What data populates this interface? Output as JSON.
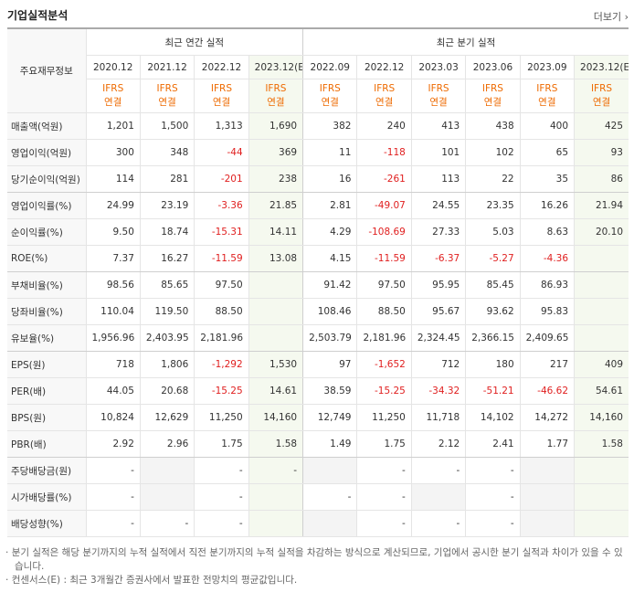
{
  "header": {
    "title": "기업실적분석",
    "more": "더보기"
  },
  "table": {
    "corner": "주요재무정보",
    "groups": [
      "최근 연간 실적",
      "최근 분기 실적"
    ],
    "annual": [
      "2020.12",
      "2021.12",
      "2022.12",
      "2023.12(E)"
    ],
    "quarterly": [
      "2022.09",
      "2022.12",
      "2023.03",
      "2023.06",
      "2023.09",
      "2023.12(E)"
    ],
    "standard": [
      "IFRS",
      "연결"
    ],
    "rows": [
      {
        "label": "매출액(억원)",
        "cells": [
          "1,201",
          "1,500",
          "1,313",
          "1,690",
          "382",
          "240",
          "413",
          "438",
          "400",
          "425"
        ]
      },
      {
        "label": "영업이익(억원)",
        "cells": [
          "300",
          "348",
          "-44",
          "369",
          "11",
          "-118",
          "101",
          "102",
          "65",
          "93"
        ]
      },
      {
        "label": "당기순이익(억원)",
        "cells": [
          "114",
          "281",
          "-201",
          "238",
          "16",
          "-261",
          "113",
          "22",
          "35",
          "86"
        ]
      },
      {
        "label": "영업이익률(%)",
        "cells": [
          "24.99",
          "23.19",
          "-3.36",
          "21.85",
          "2.81",
          "-49.07",
          "24.55",
          "23.35",
          "16.26",
          "21.94"
        ]
      },
      {
        "label": "순이익률(%)",
        "cells": [
          "9.50",
          "18.74",
          "-15.31",
          "14.11",
          "4.29",
          "-108.69",
          "27.33",
          "5.03",
          "8.63",
          "20.10"
        ]
      },
      {
        "label": "ROE(%)",
        "cells": [
          "7.37",
          "16.27",
          "-11.59",
          "13.08",
          "4.15",
          "-11.59",
          "-6.37",
          "-5.27",
          "-4.36",
          null
        ]
      },
      {
        "label": "부채비율(%)",
        "cells": [
          "98.56",
          "85.65",
          "97.50",
          null,
          "91.42",
          "97.50",
          "95.95",
          "85.45",
          "86.93",
          null
        ]
      },
      {
        "label": "당좌비율(%)",
        "cells": [
          "110.04",
          "119.50",
          "88.50",
          null,
          "108.46",
          "88.50",
          "95.67",
          "93.62",
          "95.83",
          null
        ]
      },
      {
        "label": "유보율(%)",
        "cells": [
          "1,956.96",
          "2,403.95",
          "2,181.96",
          null,
          "2,503.79",
          "2,181.96",
          "2,324.45",
          "2,366.15",
          "2,409.65",
          null
        ]
      },
      {
        "label": "EPS(원)",
        "cells": [
          "718",
          "1,806",
          "-1,292",
          "1,530",
          "97",
          "-1,652",
          "712",
          "180",
          "217",
          "409"
        ]
      },
      {
        "label": "PER(배)",
        "cells": [
          "44.05",
          "20.68",
          "-15.25",
          "14.61",
          "38.59",
          "-15.25",
          "-34.32",
          "-51.21",
          "-46.62",
          "54.61"
        ]
      },
      {
        "label": "BPS(원)",
        "cells": [
          "10,824",
          "12,629",
          "11,250",
          "14,160",
          "12,749",
          "11,250",
          "11,718",
          "14,102",
          "14,272",
          "14,160"
        ]
      },
      {
        "label": "PBR(배)",
        "cells": [
          "2.92",
          "2.96",
          "1.75",
          "1.58",
          "1.49",
          "1.75",
          "2.12",
          "2.41",
          "1.77",
          "1.58"
        ]
      },
      {
        "label": "주당배당금(원)",
        "cells": [
          "-",
          null,
          "-",
          "-",
          null,
          "-",
          "-",
          "-",
          null,
          null
        ]
      },
      {
        "label": "시가배당률(%)",
        "cells": [
          "-",
          null,
          "-",
          null,
          "-",
          "-",
          null,
          "-",
          null,
          null
        ]
      },
      {
        "label": "배당성향(%)",
        "cells": [
          "-",
          "-",
          "-",
          null,
          null,
          "-",
          "-",
          "-",
          null,
          null
        ]
      }
    ]
  },
  "notes": [
    "분기 실적은 해당 분기까지의 누적 실적에서 직전 분기까지의 누적 실적을 차감하는 방식으로 계산되므로, 기업에서 공시한 분기 실적과 차이가 있을 수 있습니다.",
    "컨센서스(E) : 최근 3개월간 증권사에서 발표한 전망치의 평균값입니다."
  ]
}
